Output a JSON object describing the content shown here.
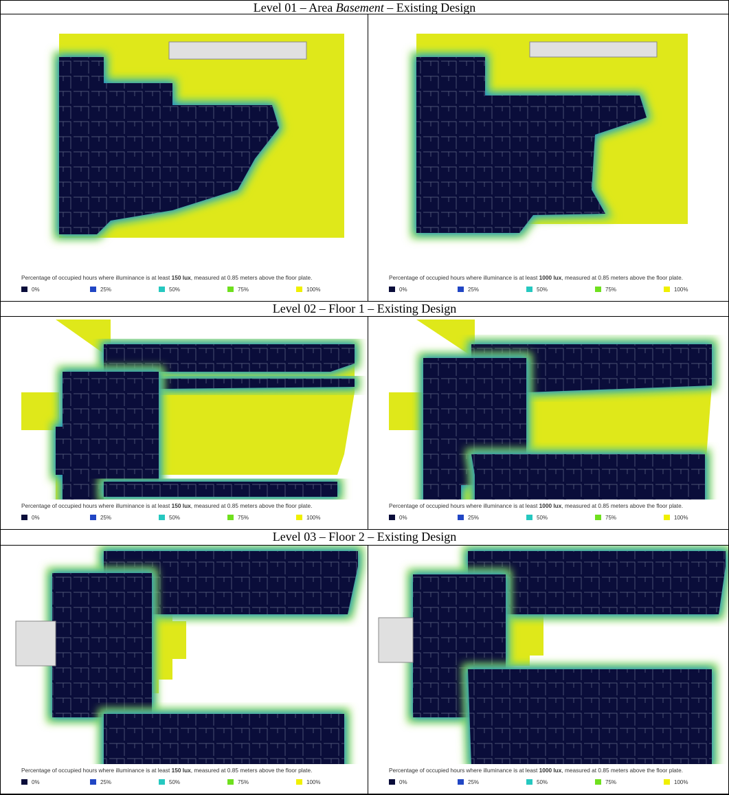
{
  "sections": [
    {
      "title": {
        "before": "Level 01 – Area ",
        "italic": "Basement",
        "after": " – Existing Design"
      },
      "panels": [
        {
          "caption": {
            "before": "Percentage of occupied hours where illuminance is at least ",
            "bold": "150 lux",
            "after": ", measured at 0.85 meters above the floor plate."
          }
        },
        {
          "caption": {
            "before": "Percentage of occupied hours where illuminance is at least ",
            "bold": "1000 lux",
            "after": ", measured at 0.85 meters above the floor plate."
          }
        }
      ]
    },
    {
      "title": {
        "before": "Level 02 – Floor 1 – Existing Design"
      },
      "panels": [
        {
          "caption": {
            "before": "Percentage of occupied hours where illuminance is at least ",
            "bold": "150 lux",
            "after": ", measured at 0.85 meters above the floor plate."
          }
        },
        {
          "caption": {
            "before": "Percentage of occupied hours where illuminance is at least ",
            "bold": "1000 lux",
            "after": ", measured at 0.85 meters above the floor plate."
          }
        }
      ]
    },
    {
      "title": {
        "before": "Level 03 – Floor 2 – Existing Design"
      },
      "panels": [
        {
          "caption": {
            "before": "Percentage of occupied hours where illuminance is at least ",
            "bold": "150 lux",
            "after": ", measured at 0.85 meters above the floor plate."
          }
        },
        {
          "caption": {
            "before": "Percentage of occupied hours where illuminance is at least ",
            "bold": "1000 lux",
            "after": ", measured at 0.85 meters above the floor plate."
          }
        }
      ]
    }
  ],
  "legend": [
    "0%",
    "25%",
    "50%",
    "75%",
    "100%"
  ]
}
